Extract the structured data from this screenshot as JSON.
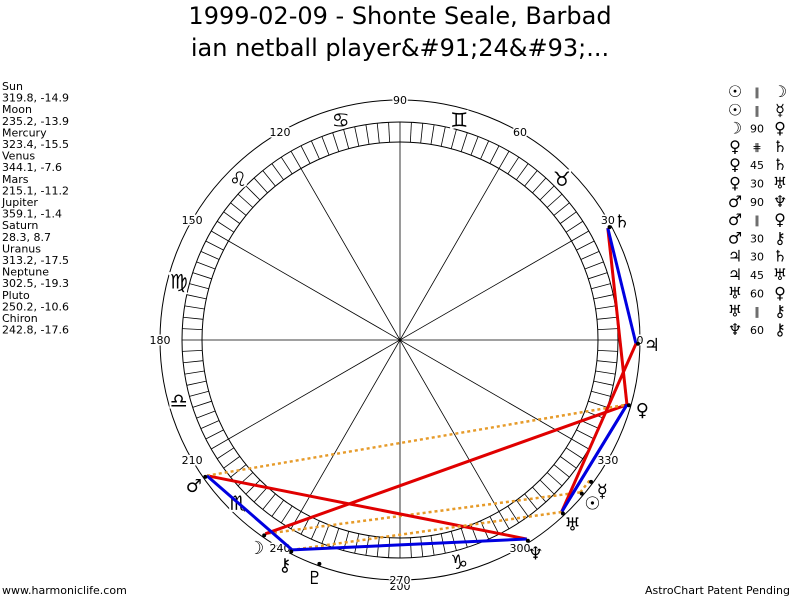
{
  "header": {
    "title": [
      "1999-02-09 - Shonte Seale, Barbad",
      "ian netball player&#91;24&#93;..."
    ]
  },
  "planets": [
    {
      "name": "Sun",
      "glyph": "☉",
      "longitude": 319.8,
      "latitude": -14.9
    },
    {
      "name": "Moon",
      "glyph": "☽",
      "longitude": 235.2,
      "latitude": -13.9
    },
    {
      "name": "Mercury",
      "glyph": "☿",
      "longitude": 323.4,
      "latitude": -15.5
    },
    {
      "name": "Venus",
      "glyph": "♀",
      "longitude": 344.1,
      "latitude": -7.6
    },
    {
      "name": "Mars",
      "glyph": "♂",
      "longitude": 215.1,
      "latitude": -11.2
    },
    {
      "name": "Jupiter",
      "glyph": "♃",
      "longitude": 359.1,
      "latitude": -1.4
    },
    {
      "name": "Saturn",
      "glyph": "♄",
      "longitude": 28.3,
      "latitude": 8.7
    },
    {
      "name": "Uranus",
      "glyph": "♅",
      "longitude": 313.2,
      "latitude": -17.5
    },
    {
      "name": "Neptune",
      "glyph": "♆",
      "longitude": 302.5,
      "latitude": -19.3
    },
    {
      "name": "Pluto",
      "glyph": "♇",
      "longitude": 250.2,
      "latitude": -10.6
    },
    {
      "name": "Chiron",
      "glyph": "⚷",
      "longitude": 242.8,
      "latitude": -17.6
    }
  ],
  "coord_separator": ", ",
  "aspects": [
    {
      "from": "☉",
      "aspect": "∥",
      "to": "☽",
      "color": "#e69a28"
    },
    {
      "from": "☉",
      "aspect": "∥",
      "to": "☿",
      "color": "#e69a28"
    },
    {
      "from": "☽",
      "aspect": 90,
      "to": "♀",
      "color": "#e00000"
    },
    {
      "from": "♀",
      "aspect": "⋕",
      "to": "♄",
      "color": "#e69a28"
    },
    {
      "from": "♀",
      "aspect": 45,
      "to": "♄",
      "color": "#e00000"
    },
    {
      "from": "♀",
      "aspect": 30,
      "to": "♅",
      "color": "#0000e0"
    },
    {
      "from": "♂",
      "aspect": 90,
      "to": "♆",
      "color": "#e00000"
    },
    {
      "from": "♂",
      "aspect": "∥",
      "to": "♀",
      "color": "#e69a28"
    },
    {
      "from": "♂",
      "aspect": 30,
      "to": "⚷",
      "color": "#0000e0"
    },
    {
      "from": "♃",
      "aspect": 30,
      "to": "♄",
      "color": "#0000e0"
    },
    {
      "from": "♃",
      "aspect": 45,
      "to": "♅",
      "color": "#e00000"
    },
    {
      "from": "♅",
      "aspect": 60,
      "to": "♀",
      "color": "#0000e0"
    },
    {
      "from": "♅",
      "aspect": "∥",
      "to": "⚷",
      "color": "#e69a28"
    },
    {
      "from": "♆",
      "aspect": 60,
      "to": "⚷",
      "color": "#0000e0"
    }
  ],
  "degree_labels": [
    90,
    60,
    30,
    0,
    330,
    300,
    270,
    240,
    210,
    180,
    150,
    120
  ],
  "zodiac": [
    null,
    "♉",
    "♊",
    "♋",
    "♌",
    "♍",
    "♎",
    "♏",
    null,
    "♑",
    null,
    null
  ],
  "bottom_label": "200",
  "footer": {
    "left": "www.harmoniclife.com",
    "right": "AstroChart Patent Pending"
  }
}
